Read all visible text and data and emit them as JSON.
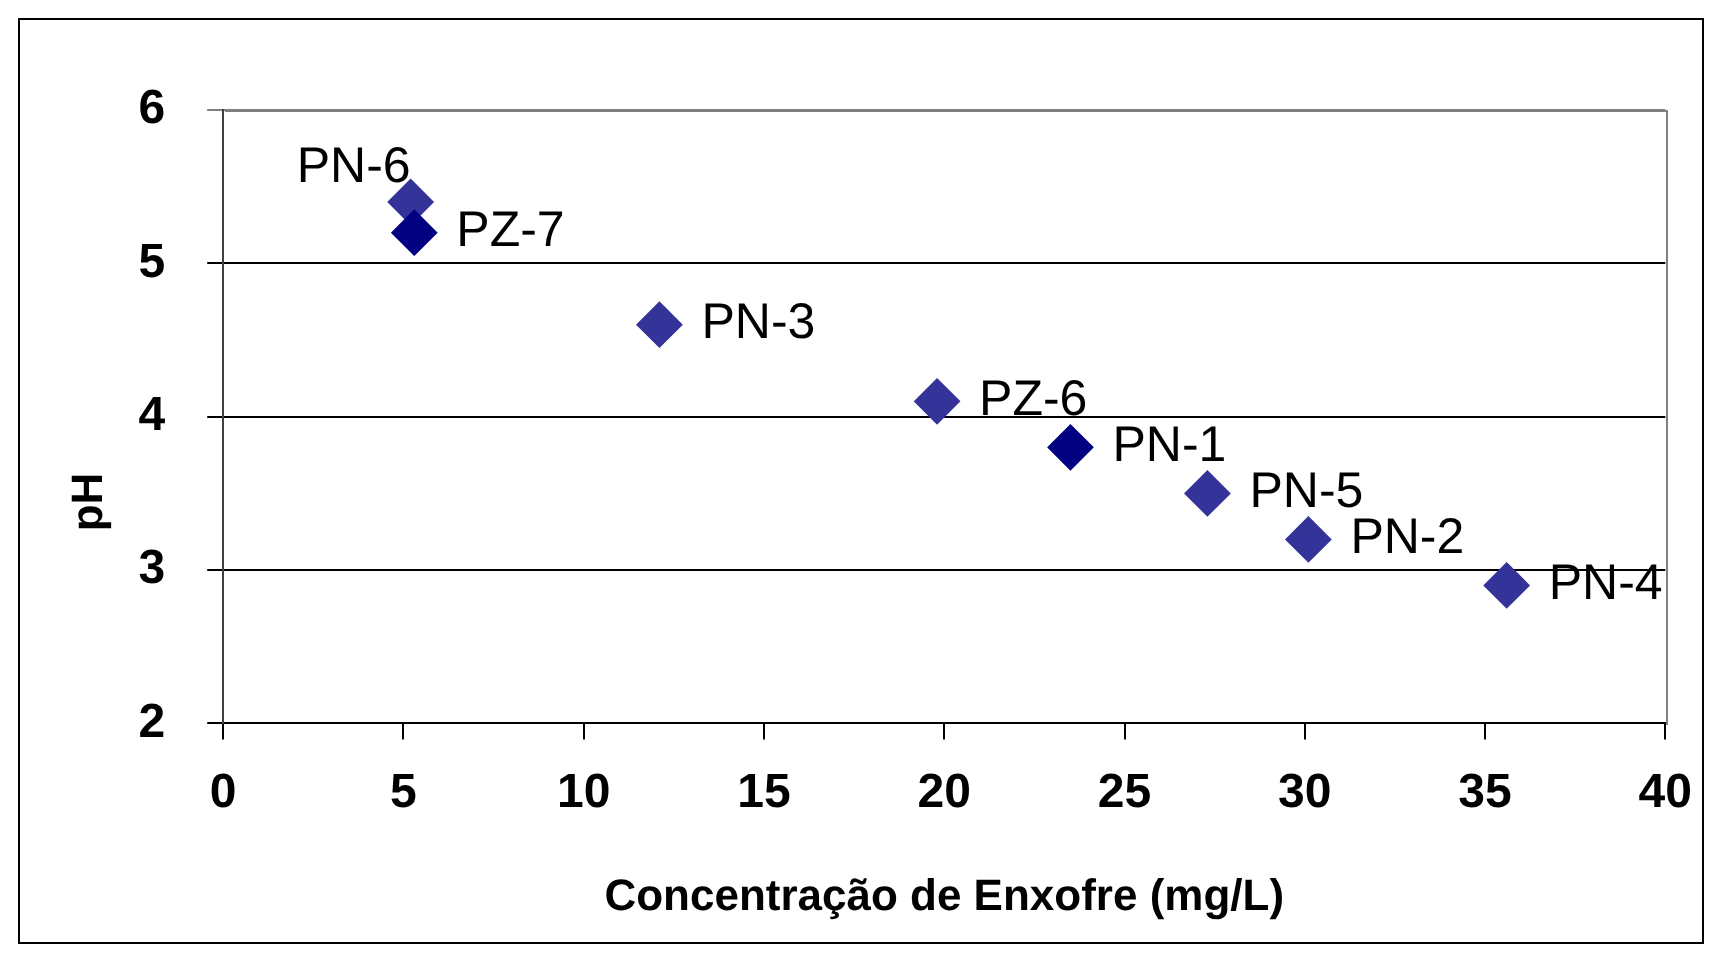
{
  "chart_data": {
    "type": "scatter",
    "xlabel": "Concentração de Enxofre (mg/L)",
    "ylabel": "pH",
    "x": [
      5.2,
      5.3,
      12.1,
      19.8,
      23.5,
      27.3,
      30.1,
      35.6
    ],
    "values": [
      5.4,
      5.2,
      4.6,
      4.1,
      3.8,
      3.5,
      3.2,
      2.9
    ],
    "colors": [
      "#333399",
      "#000080",
      "#333399",
      "#333399",
      "#000080",
      "#333399",
      "#333399",
      "#333399"
    ],
    "xlim": [
      0,
      40
    ],
    "xticks": [
      0,
      5,
      10,
      15,
      20,
      25,
      30,
      35,
      40
    ],
    "ylim": [
      2,
      6
    ],
    "yticks": [
      2,
      3,
      4,
      5,
      6
    ],
    "grid": "y",
    "marker": "diamond",
    "annotations": [
      {
        "text": "PN-6",
        "x": 5.2,
        "y": 5.4
      },
      {
        "text": "PZ-7",
        "x": 5.3,
        "y": 5.2
      },
      {
        "text": "PN-3",
        "x": 12.1,
        "y": 4.6
      },
      {
        "text": "PZ-6",
        "x": 19.8,
        "y": 4.1
      },
      {
        "text": "PN-1",
        "x": 23.5,
        "y": 3.8
      },
      {
        "text": "PN-5",
        "x": 27.3,
        "y": 3.5
      },
      {
        "text": "PN-2",
        "x": 30.1,
        "y": 3.2
      },
      {
        "text": "PN-4",
        "x": 35.6,
        "y": 2.9
      }
    ]
  }
}
